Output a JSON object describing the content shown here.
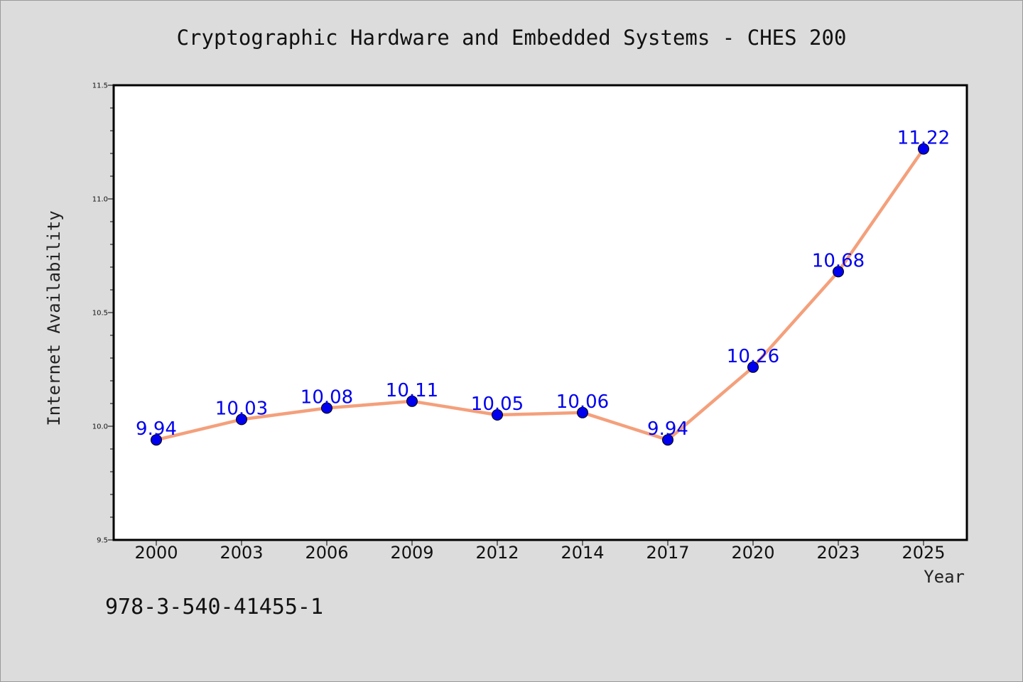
{
  "colors": {
    "background": "#dcdcdc",
    "plot_background": "#ffffff",
    "line": "#f4a07c",
    "marker": "#0000ee",
    "data_label": "#0000ee",
    "frame": "#000000"
  },
  "footnote": "978-3-540-41455-1",
  "chart_data": {
    "type": "line",
    "title": "Cryptographic Hardware and Embedded Systems - CHES 200",
    "xlabel": "Year",
    "ylabel": "Internet Availability",
    "categories": [
      "2000",
      "2003",
      "2006",
      "2009",
      "2012",
      "2014",
      "2017",
      "2020",
      "2023",
      "2025"
    ],
    "series": [
      {
        "values": [
          9.94,
          10.03,
          10.08,
          10.11,
          10.05,
          10.06,
          9.94,
          10.26,
          10.68,
          11.22
        ],
        "data_labels": [
          "9.94",
          "10.03",
          "10.08",
          "10.11",
          "10.05",
          "10.06",
          "9.94",
          "10.26",
          "10.68",
          "11.22"
        ]
      }
    ],
    "ylim": [
      9.5,
      11.5
    ],
    "yticks": [
      "9.5",
      "10.0",
      "10.5",
      "11.0",
      "11.5"
    ],
    "y_minor_step": 0.1,
    "grid": false,
    "legend": "none"
  }
}
